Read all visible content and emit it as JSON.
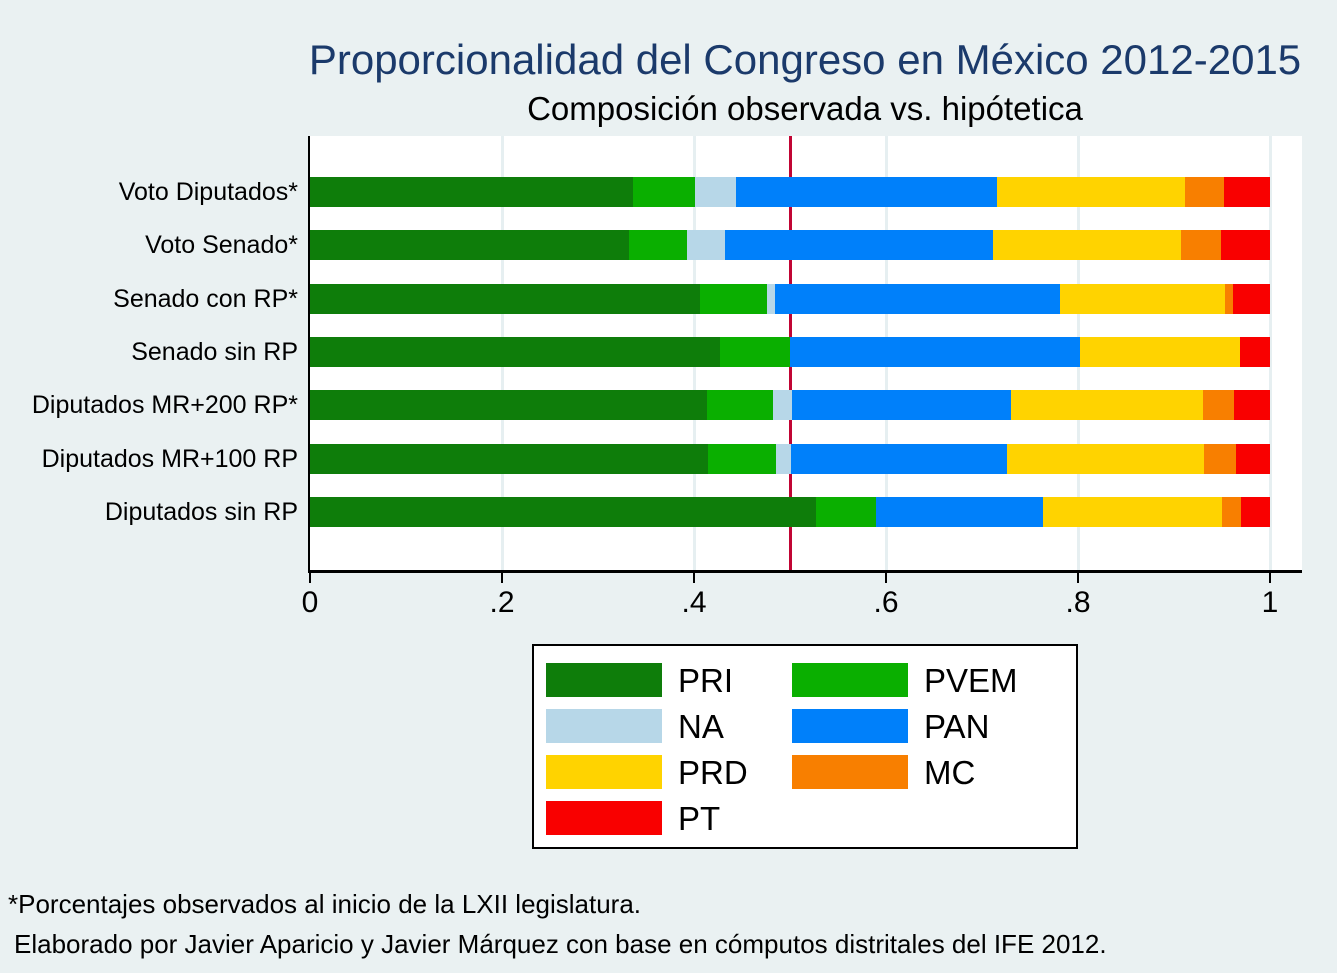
{
  "header": {
    "title": "Proporcionalidad del Congreso en México 2012-2015",
    "subtitle": "Composición observada vs. hipótetica"
  },
  "footnotes": [
    "*Porcentajes observados al inicio de la LXII legislatura.",
    "Elaborado por Javier Aparicio y Javier Márquez con base en cómputos distritales del IFE 2012."
  ],
  "colors": {
    "background": "#EAF1F2",
    "plot_background": "#FFFFFF",
    "gridline": "#E6EFF1",
    "axis": "#000000",
    "title": "#1B3A6B",
    "reference_line": "#C10534"
  },
  "chart_data": {
    "type": "bar",
    "orientation": "horizontal",
    "stacked": true,
    "title": "Proporcionalidad del Congreso en México 2012-2015",
    "subtitle": "Composición observada vs. hipótetica",
    "categories": [
      "Voto Diputados*",
      "Voto Senado*",
      "Senado con RP*",
      "Senado sin RP",
      "Diputados MR+200 RP*",
      "Diputados MR+100 RP",
      "Diputados sin RP"
    ],
    "series": [
      {
        "name": "PRI",
        "color": "#0E7D0A",
        "values": [
          0.336,
          0.332,
          0.406,
          0.427,
          0.414,
          0.415,
          0.527
        ]
      },
      {
        "name": "PVEM",
        "color": "#0AAF00",
        "values": [
          0.065,
          0.061,
          0.07,
          0.073,
          0.068,
          0.07,
          0.063
        ]
      },
      {
        "name": "NA",
        "color": "#B7D7E8",
        "values": [
          0.043,
          0.039,
          0.008,
          0.0,
          0.02,
          0.016,
          0.0
        ]
      },
      {
        "name": "PAN",
        "color": "#0080FA",
        "values": [
          0.272,
          0.279,
          0.297,
          0.302,
          0.228,
          0.225,
          0.174
        ]
      },
      {
        "name": "PRD",
        "color": "#FFD300",
        "values": [
          0.195,
          0.196,
          0.172,
          0.167,
          0.2,
          0.205,
          0.186
        ]
      },
      {
        "name": "MC",
        "color": "#F87F00",
        "values": [
          0.041,
          0.042,
          0.008,
          0.0,
          0.032,
          0.034,
          0.02
        ]
      },
      {
        "name": "PT",
        "color": "#F90000",
        "values": [
          0.048,
          0.051,
          0.039,
          0.031,
          0.038,
          0.035,
          0.03
        ]
      }
    ],
    "xlim": [
      0,
      1
    ],
    "x_ticks": [
      {
        "value": 0,
        "label": "0"
      },
      {
        "value": 0.2,
        "label": ".2"
      },
      {
        "value": 0.4,
        "label": ".4"
      },
      {
        "value": 0.6,
        "label": ".6"
      },
      {
        "value": 0.8,
        "label": ".8"
      },
      {
        "value": 1,
        "label": "1"
      }
    ],
    "grid": true,
    "reference_line": {
      "value": 0.5,
      "color": "#C10534"
    },
    "legend": {
      "position": "bottom",
      "columns": 2,
      "entries": [
        "PRI",
        "NA",
        "PRD",
        "PT",
        "PVEM",
        "PAN",
        "MC"
      ]
    }
  }
}
